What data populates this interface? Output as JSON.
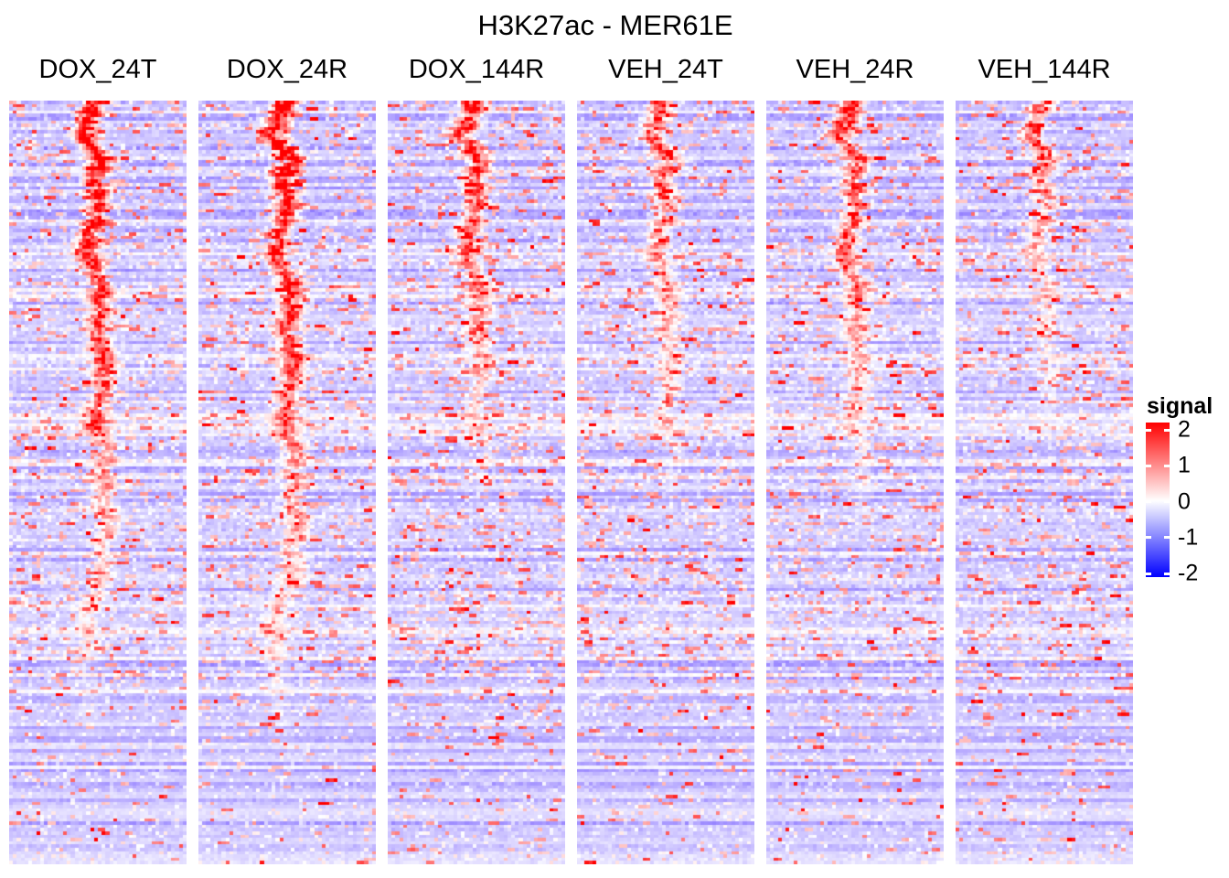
{
  "chart_data": {
    "type": "heatmap",
    "title": "H3K27ac - MER61E",
    "legend_title": "signal",
    "colorbar_ticks": [
      "2",
      "1",
      "0",
      "-1",
      "-2"
    ],
    "value_limits": [
      -2,
      2
    ],
    "color_scale": {
      "high": "#FF0000",
      "mid": "#FFFFFF",
      "low": "#0000FF"
    },
    "rows": 232,
    "cols": 46,
    "row_order": "regions sorted by mean signal, descending (shared across all panels)",
    "description": "Six ChIP-seq signal heatmap panels over MER61E repeat elements; each panel shows a vertical enrichment band at the element center that fades toward lower-ranked rows, on a pale blue-violet background with scattered red speckles.",
    "panels": [
      {
        "label": "DOX_24T",
        "central_enrichment": "strong",
        "band_amp": 2.8,
        "band_persist": 0.85,
        "speckle": 1.0
      },
      {
        "label": "DOX_24R",
        "central_enrichment": "strong",
        "band_amp": 2.8,
        "band_persist": 0.88,
        "speckle": 1.0
      },
      {
        "label": "DOX_144R",
        "central_enrichment": "moderate",
        "band_amp": 2.3,
        "band_persist": 0.55,
        "speckle": 1.15
      },
      {
        "label": "VEH_24T",
        "central_enrichment": "weak-moderate",
        "band_amp": 1.8,
        "band_persist": 0.55,
        "speckle": 1.1
      },
      {
        "label": "VEH_24R",
        "central_enrichment": "moderate",
        "band_amp": 2.2,
        "band_persist": 0.58,
        "speckle": 1.0
      },
      {
        "label": "VEH_144R",
        "central_enrichment": "weak",
        "band_amp": 1.6,
        "band_persist": 0.45,
        "speckle": 1.05
      }
    ]
  }
}
